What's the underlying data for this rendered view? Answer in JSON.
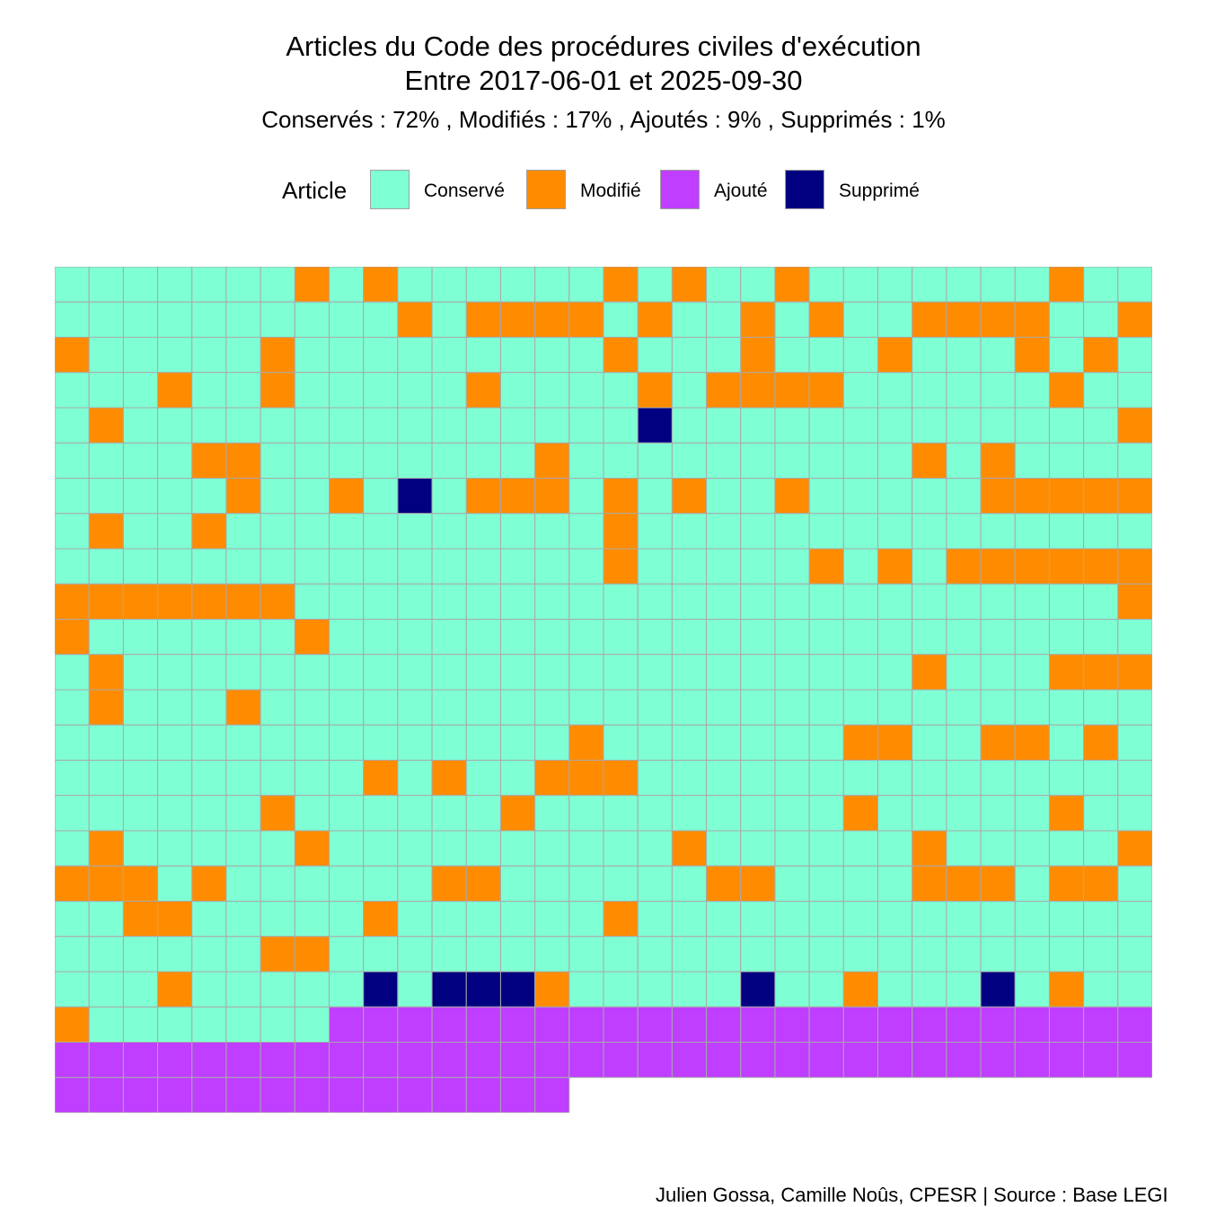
{
  "chart_data": {
    "type": "heatmap",
    "title": "Articles du Code des procédures civiles d'exécution",
    "subtitle": "Entre 2017-06-01 et 2025-09-30",
    "stats": "Conservés :  72% , Modifiés :  17% , Ajoutés :  9% , Supprimés :  1%",
    "legend": {
      "title": "Article",
      "position": "top",
      "entries": [
        {
          "code": "C",
          "label": "Conservé",
          "color": "#7FFFD4"
        },
        {
          "code": "M",
          "label": "Modifié",
          "color": "#FF8C00"
        },
        {
          "code": "A",
          "label": "Ajouté",
          "color": "#BF3EFF"
        },
        {
          "code": "S",
          "label": "Supprimé",
          "color": "#000080"
        }
      ]
    },
    "columns": 32,
    "cell_border_color": "#A9A9A9",
    "rows": [
      "CCCCCCCMCMCCCCCCMCMCCMCCCCCCCMCC",
      "CCCCCCCCCCMCMMMMCMCCMCMCCMMMMCCM",
      "MCCCCCMCCCCCCCCCMCCCMCCCMCCCMCMC",
      "CCCMCCMCCCCCMCCCCMCMMMMCCCCCCMCC",
      "CMCCCCCCCCCCCCCCCSCCCCCCCCCCCCCM",
      "CCCCMMCCCCCCCCMCCCCCCCCCCMCMCCCC",
      "CCCCCMCCMCSCMMMCMCMCCMCCCCCMMMMM",
      "CMCCMCCCCCCCCCCCMCCCCCCCCCCCCCCC",
      "CCCCCCCCCCCCCCCCMCCCCCMCMCMMMMMM",
      "MMMMMMMCCCCCCCCCCCCCCCCCCCCCCCCM",
      "MCCCCCCMCCCCCCCCCCCCCCCCCCCCCCCC",
      "CMCCCCCCCCCCCCCCCCCCCCCCCMCCCMMM",
      "CMCCCMCCCCCCCCCCCCCCCCCCCCCCCCCC",
      "CCCCCCCCCCCCCCCMCCCCCCCMMCCMMCMC",
      "CCCCCCCCCMCMCCMMMCCCCCCCCCCCCCCC",
      "CCCCCCMCCCCCCMCCCCCCCCCMCCCCCMCC",
      "CMCCCCCMCCCCCCCCCCMCCCCCCMCCCCCM",
      "MMMCMCCCCCCMMCCCCCCMMCCCCMMMCMMC",
      "CCMMCCCCCMCCCCCCMCCCCCCCCCCCCCCC",
      "CCCCCCMMCCCCCCCCCCCCCCCCCCCCCCCC",
      "CCCMCCCCCSCSSSMCCCCCSCCMCCCSCMCC",
      "MCCCCCCCAAAAAAAAAAAAAAAAAAAAAAAA",
      "AAAAAAAAAAAAAAAAAAAAAAAAAAAAAAAA",
      "AAAAAAAAAAAAAAA"
    ]
  },
  "caption": "Julien Gossa, Camille Noûs, CPESR  |  Source : Base LEGI"
}
